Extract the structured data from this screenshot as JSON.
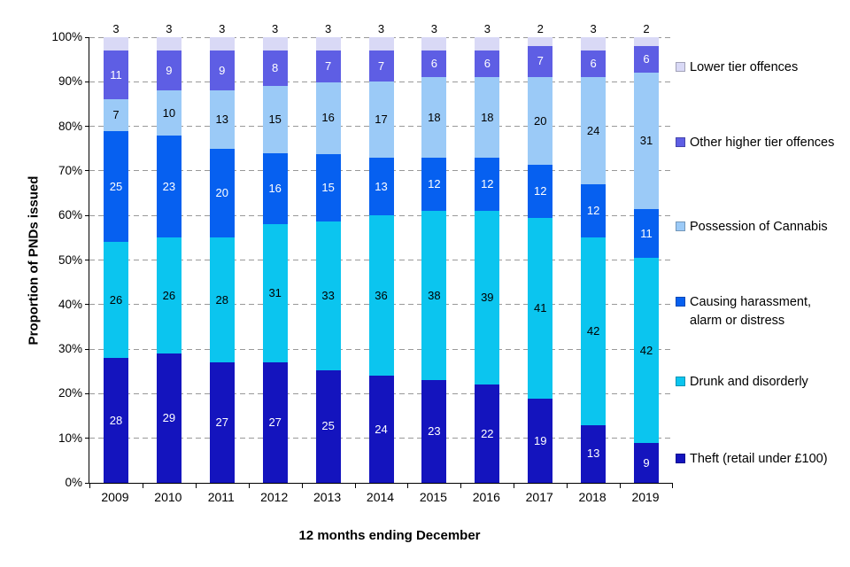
{
  "chart_data": {
    "type": "bar",
    "stacked": true,
    "percent": true,
    "title": "",
    "xlabel": "12 months ending December",
    "ylabel": "Proportion of PNDs issued",
    "ylim": [
      0,
      100
    ],
    "ytick_step": 10,
    "ytick_labels": [
      "0%",
      "10%",
      "20%",
      "30%",
      "40%",
      "50%",
      "60%",
      "70%",
      "80%",
      "90%",
      "100%"
    ],
    "categories": [
      "2009",
      "2010",
      "2011",
      "2012",
      "2013",
      "2014",
      "2015",
      "2016",
      "2017",
      "2018",
      "2019"
    ],
    "series": [
      {
        "name": "Theft (retail under £100)",
        "color": "#1414BE",
        "label_color": "#FFFFFF",
        "values": [
          28,
          29,
          27,
          27,
          25,
          24,
          23,
          22,
          19,
          13,
          9
        ]
      },
      {
        "name": "Drunk and disorderly",
        "color": "#0BC5EF",
        "label_color": "#000000",
        "values": [
          26,
          26,
          28,
          31,
          33,
          36,
          38,
          39,
          41,
          42,
          42
        ]
      },
      {
        "name": "Causing harassment, alarm or distress",
        "color": "#0660F0",
        "label_color": "#FFFFFF",
        "values": [
          25,
          23,
          20,
          16,
          15,
          13,
          12,
          12,
          12,
          12,
          11
        ]
      },
      {
        "name": "Possession of Cannabis",
        "color": "#9BCAF7",
        "label_color": "#000000",
        "values": [
          7,
          10,
          13,
          15,
          16,
          17,
          18,
          18,
          20,
          24,
          31
        ]
      },
      {
        "name": "Other higher tier offences",
        "color": "#5E5EE4",
        "label_color": "#FFFFFF",
        "values": [
          11,
          9,
          9,
          8,
          7,
          7,
          6,
          6,
          7,
          6,
          6
        ]
      },
      {
        "name": "Lower tier offences",
        "color": "#D9D9F6",
        "label_color": "#000000",
        "values": [
          3,
          3,
          3,
          3,
          3,
          3,
          3,
          3,
          2,
          3,
          2
        ]
      }
    ],
    "legend_position": "right",
    "grid": "dashed horizontal"
  }
}
